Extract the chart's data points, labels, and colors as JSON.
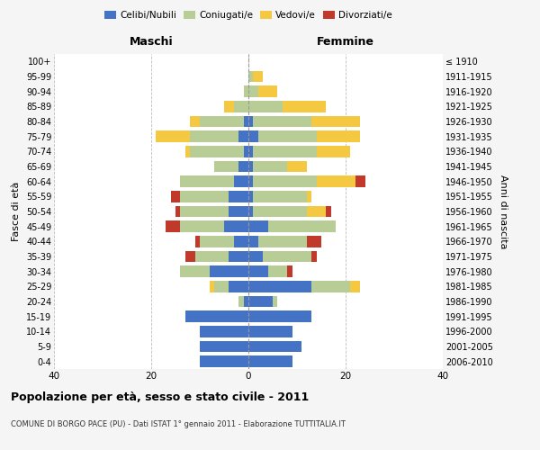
{
  "age_groups": [
    "0-4",
    "5-9",
    "10-14",
    "15-19",
    "20-24",
    "25-29",
    "30-34",
    "35-39",
    "40-44",
    "45-49",
    "50-54",
    "55-59",
    "60-64",
    "65-69",
    "70-74",
    "75-79",
    "80-84",
    "85-89",
    "90-94",
    "95-99",
    "100+"
  ],
  "birth_years": [
    "2006-2010",
    "2001-2005",
    "1996-2000",
    "1991-1995",
    "1986-1990",
    "1981-1985",
    "1976-1980",
    "1971-1975",
    "1966-1970",
    "1961-1965",
    "1956-1960",
    "1951-1955",
    "1946-1950",
    "1941-1945",
    "1936-1940",
    "1931-1935",
    "1926-1930",
    "1921-1925",
    "1916-1920",
    "1911-1915",
    "≤ 1910"
  ],
  "maschi_celibi": [
    10,
    10,
    10,
    13,
    1,
    4,
    8,
    4,
    3,
    5,
    4,
    4,
    3,
    2,
    1,
    2,
    1,
    0,
    0,
    0,
    0
  ],
  "maschi_coniugati": [
    0,
    0,
    0,
    0,
    1,
    3,
    6,
    7,
    7,
    9,
    10,
    10,
    11,
    5,
    11,
    10,
    9,
    3,
    1,
    0,
    0
  ],
  "maschi_vedovi": [
    0,
    0,
    0,
    0,
    0,
    1,
    0,
    0,
    0,
    0,
    0,
    0,
    0,
    0,
    1,
    7,
    2,
    2,
    0,
    0,
    0
  ],
  "maschi_divorziati": [
    0,
    0,
    0,
    0,
    0,
    0,
    0,
    2,
    1,
    3,
    1,
    2,
    0,
    0,
    0,
    0,
    0,
    0,
    0,
    0,
    0
  ],
  "femmine_celibi": [
    9,
    11,
    9,
    13,
    5,
    13,
    4,
    3,
    2,
    4,
    1,
    1,
    1,
    1,
    1,
    2,
    1,
    0,
    0,
    0,
    0
  ],
  "femmine_coniugati": [
    0,
    0,
    0,
    0,
    1,
    8,
    4,
    10,
    10,
    14,
    11,
    11,
    13,
    7,
    13,
    12,
    12,
    7,
    2,
    1,
    0
  ],
  "femmine_vedovi": [
    0,
    0,
    0,
    0,
    0,
    2,
    0,
    0,
    0,
    0,
    4,
    1,
    8,
    4,
    7,
    9,
    10,
    9,
    4,
    2,
    0
  ],
  "femmine_divorziati": [
    0,
    0,
    0,
    0,
    0,
    0,
    1,
    1,
    3,
    0,
    1,
    0,
    2,
    0,
    0,
    0,
    0,
    0,
    0,
    0,
    0
  ],
  "color_celibi": "#4472c4",
  "color_coniugati": "#b8cc96",
  "color_vedovi": "#f5c842",
  "color_divorziati": "#c0392b",
  "xlim": 40,
  "title": "Popolazione per età, sesso e stato civile - 2011",
  "subtitle": "COMUNE DI BORGO PACE (PU) - Dati ISTAT 1° gennaio 2011 - Elaborazione TUTTITALIA.IT",
  "ylabel_left": "Fasce di età",
  "ylabel_right": "Anni di nascita",
  "xlabel_left": "Maschi",
  "xlabel_right": "Femmine",
  "legend_labels": [
    "Celibi/Nubili",
    "Coniugati/e",
    "Vedovi/e",
    "Divorziati/e"
  ],
  "bg_color": "#f5f5f5",
  "plot_bg_color": "#ffffff"
}
